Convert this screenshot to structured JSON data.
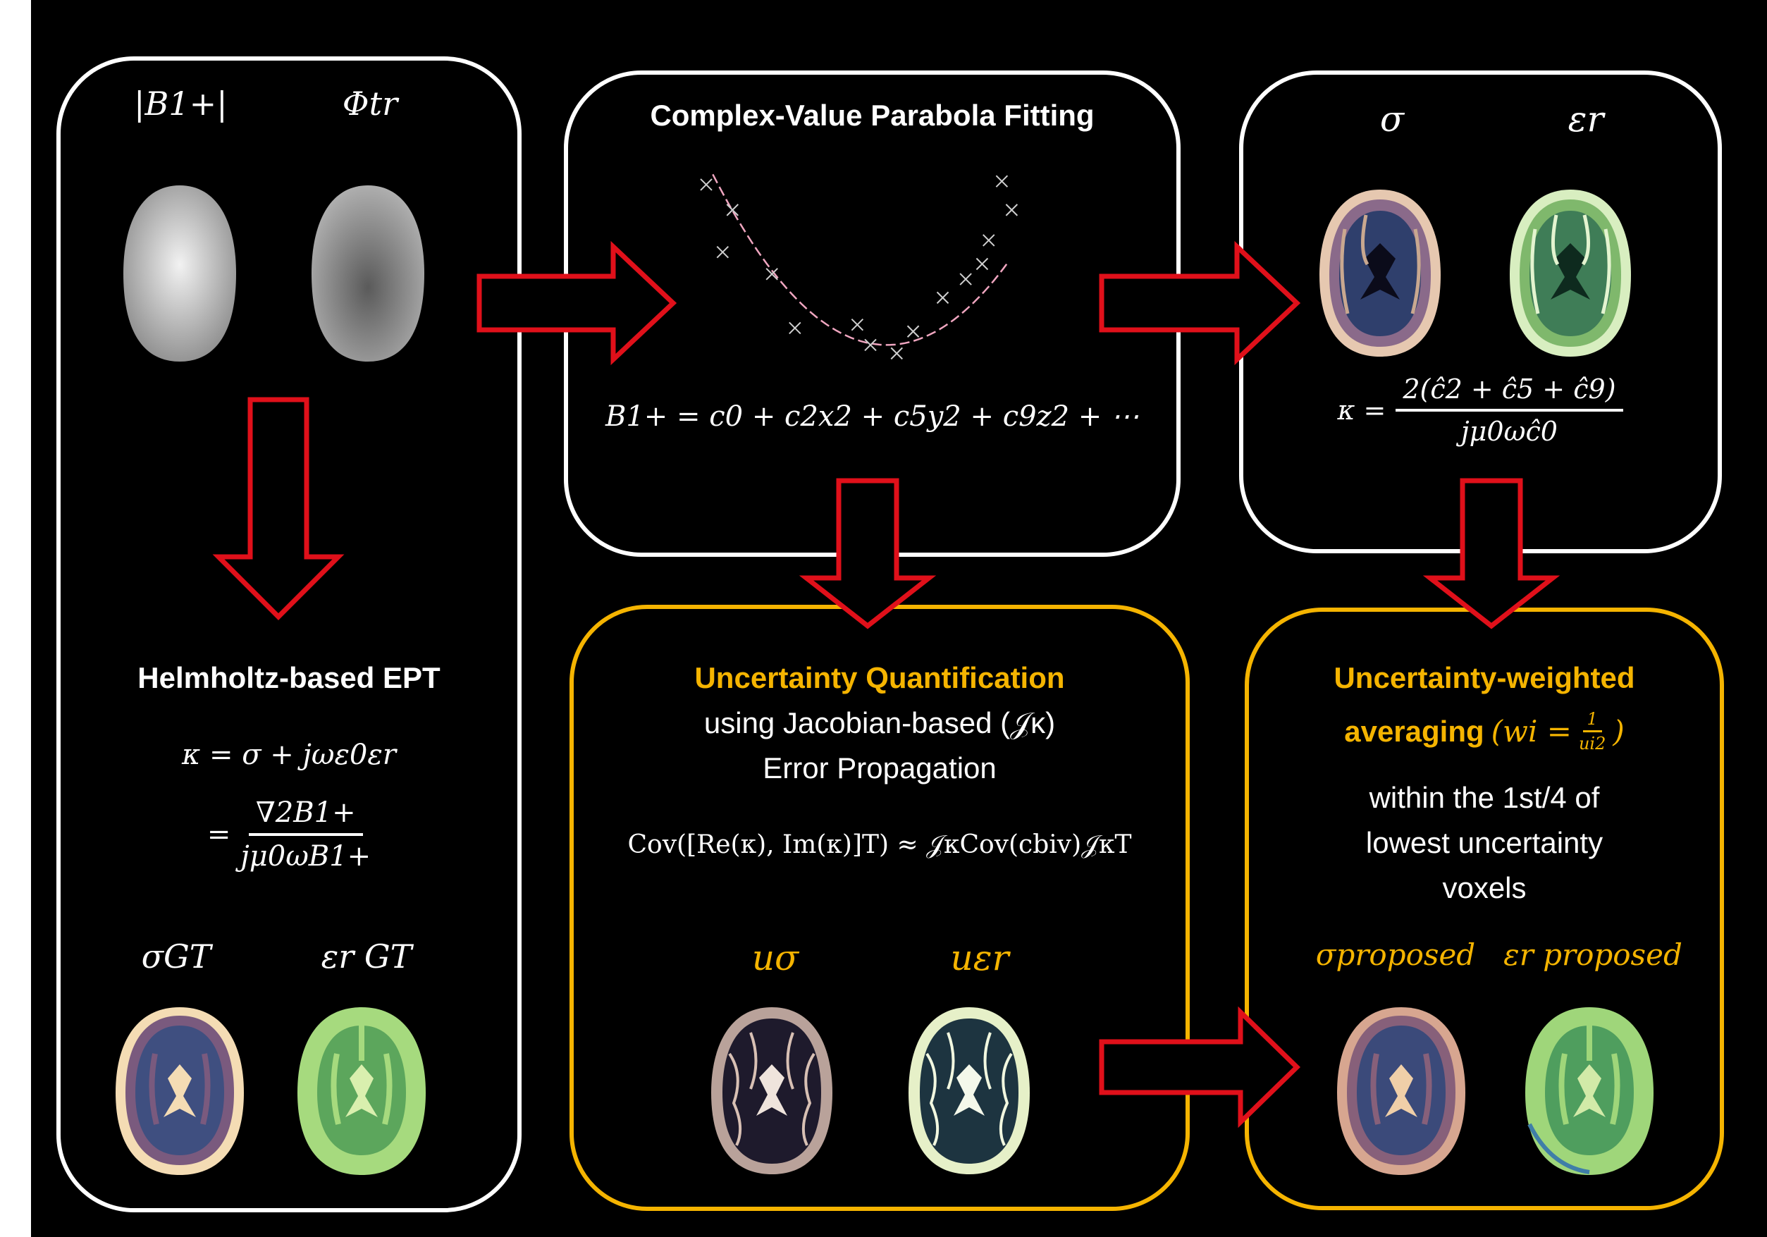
{
  "panels": {
    "input": {
      "b1_mag_label": "|B1+|",
      "phase_label": "Φtr",
      "title": "Helmholtz-based EPT",
      "eq_kappa": "κ = σ + jωε0εr",
      "eq_num": "∇2B1+",
      "eq_den": "jμ0ωB1+",
      "sigma_gt_label": "σGT",
      "eps_gt_label": "εr GT"
    },
    "fitting": {
      "title": "Complex-Value Parabola Fitting",
      "equation": "B1+ = c0 + c2x2 + c5y2 + c9z2 + ⋯",
      "plot_x": [
        0.0,
        0.08,
        0.05,
        0.2,
        0.27,
        0.46,
        0.5,
        0.58,
        0.63,
        0.72,
        0.79,
        0.84,
        0.86,
        0.93,
        0.9
      ],
      "plot_y": [
        0.05,
        0.2,
        0.45,
        0.58,
        0.9,
        0.88,
        1.0,
        1.05,
        0.92,
        0.72,
        0.61,
        0.52,
        0.38,
        0.2,
        0.03
      ]
    },
    "output": {
      "sigma_label": "σ",
      "eps_label": "εr",
      "eq_lhs": "κ =",
      "eq_num": "2(ĉ2 + ĉ5 + ĉ9)",
      "eq_den": "jμ0ωĉ0"
    },
    "uncertainty": {
      "title": "Uncertainty Quantification",
      "line2": "using Jacobian-based (𝒥κ)",
      "line3": "Error Propagation",
      "equation": "Cov([Re(κ), Im(κ)]T) ≈ 𝒥κCov(cbiv)𝒥κT",
      "u_sigma_label": "uσ",
      "u_eps_label": "uεr"
    },
    "weighted": {
      "title_line1": "Uncertainty-weighted",
      "title_line2": "averaging",
      "weight_eq_lhs": "(wi =",
      "weight_eq_num": "1",
      "weight_eq_den": "ui2",
      "weight_eq_close": ")",
      "line3": "within the 1st/4 of",
      "line4": "lowest uncertainty",
      "line5": "voxels",
      "sigma_proposed_label": "σproposed",
      "eps_proposed_label": "εr proposed"
    }
  },
  "colors": {
    "background": "#000000",
    "panel_border": "#ffffff",
    "highlight_border": "#f5b400",
    "arrow_fill": "#000000",
    "arrow_stroke": "#e0101a",
    "sigma_csf": "#f4dcb4",
    "sigma_gm": "#7a5a7e",
    "sigma_wm": "#3f4f80",
    "eps_csf": "#d9efae",
    "eps_gm": "#a6da7e",
    "eps_wm": "#5ca65c"
  }
}
